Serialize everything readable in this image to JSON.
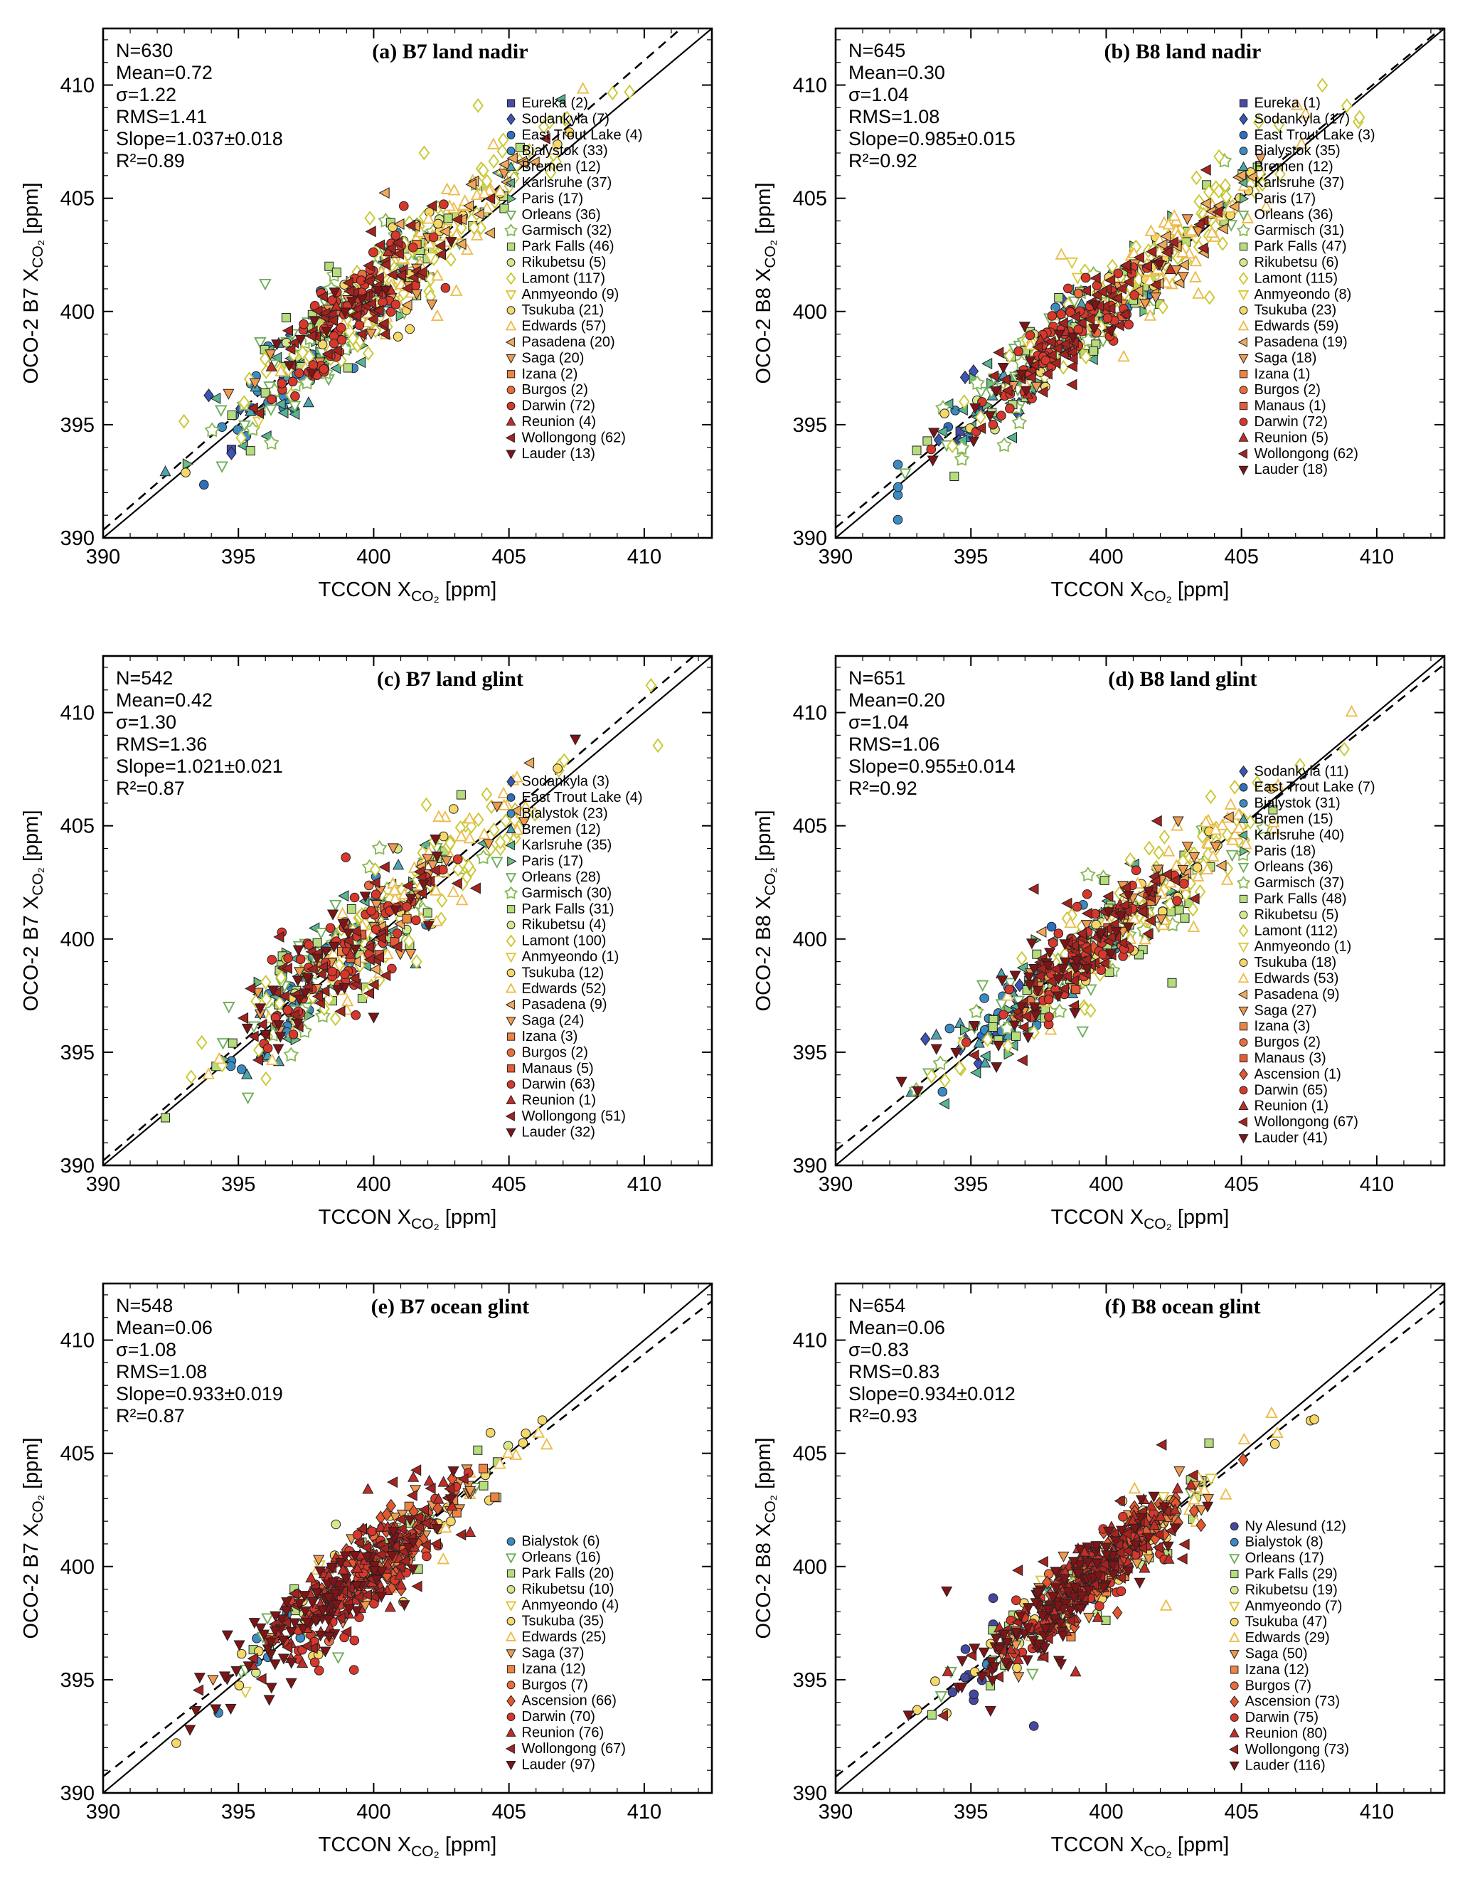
{
  "page": {
    "background": "#ffffff"
  },
  "chart_data": {
    "type": "scatter",
    "description": "Six-panel comparison of OCO-2 versus TCCON XCO2 retrievals (builds B7 and B8; land nadir, land glint, ocean glint), with one-to-one solid line and dashed regression line per panel.",
    "axes": {
      "min": 390,
      "max": 412.5,
      "major_ticks": [
        390,
        395,
        400,
        405,
        410
      ],
      "minor_step": 1,
      "xlabel": {
        "pre": "TCCON X",
        "sub": "CO₂",
        "unit": "[ppm]"
      },
      "unit": "ppm",
      "grid": false
    },
    "lines": {
      "identity": "solid black 1:1 line",
      "fit": "dashed black regression line"
    },
    "stations": [
      {
        "name": "Ny Alesund",
        "color": "#46489f",
        "marker": "circle",
        "open": false,
        "x_center": 395.6,
        "x_spread": 1.2
      },
      {
        "name": "Eureka",
        "color": "#4a4aa8",
        "marker": "square",
        "open": false,
        "x_center": 395.5,
        "x_spread": 1.5
      },
      {
        "name": "Sodankyla",
        "color": "#3a55b4",
        "marker": "diamond",
        "open": false,
        "x_center": 396.6,
        "x_spread": 1.8
      },
      {
        "name": "East Trout Lake",
        "color": "#2e6fbe",
        "marker": "circle",
        "open": false,
        "x_center": 397.5,
        "x_spread": 2.0
      },
      {
        "name": "Bialystok",
        "color": "#3b8bc2",
        "marker": "circle",
        "open": false,
        "x_center": 397.4,
        "x_spread": 2.2
      },
      {
        "name": "Bremen",
        "color": "#4da4b0",
        "marker": "triangle-up",
        "open": false,
        "x_center": 397.6,
        "x_spread": 2.0
      },
      {
        "name": "Karlsruhe",
        "color": "#57b394",
        "marker": "triangle-left",
        "open": false,
        "x_center": 398.5,
        "x_spread": 2.4
      },
      {
        "name": "Paris",
        "color": "#6fbf7f",
        "marker": "triangle-right",
        "open": false,
        "x_center": 398.6,
        "x_spread": 2.2
      },
      {
        "name": "Orleans",
        "color": "#6fae5c",
        "marker": "triangle-down",
        "open": true,
        "x_center": 398.5,
        "x_spread": 2.4
      },
      {
        "name": "Garmisch",
        "color": "#87b954",
        "marker": "star",
        "open": true,
        "x_center": 399.5,
        "x_spread": 2.6
      },
      {
        "name": "Park Falls",
        "color": "#b5dd7c",
        "marker": "square",
        "open": false,
        "x_center": 399.6,
        "x_spread": 2.8
      },
      {
        "name": "Rikubetsu",
        "color": "#d3e98c",
        "marker": "circle",
        "open": false,
        "x_center": 399.0,
        "x_spread": 2.4
      },
      {
        "name": "Lamont",
        "color": "#c9c832",
        "marker": "diamond",
        "open": true,
        "x_center": 401.0,
        "x_spread": 3.0
      },
      {
        "name": "Anmyeondo",
        "color": "#dcc83e",
        "marker": "triangle-down",
        "open": true,
        "x_center": 399.5,
        "x_spread": 2.0
      },
      {
        "name": "Tsukuba",
        "color": "#f5d868",
        "marker": "circle",
        "open": false,
        "x_center": 400.5,
        "x_spread": 2.8
      },
      {
        "name": "Edwards",
        "color": "#edbc4e",
        "marker": "triangle-up",
        "open": true,
        "x_center": 402.0,
        "x_spread": 2.6
      },
      {
        "name": "Pasadena",
        "color": "#f0a95a",
        "marker": "triangle-left",
        "open": false,
        "x_center": 402.4,
        "x_spread": 2.4
      },
      {
        "name": "Saga",
        "color": "#ef9a4e",
        "marker": "triangle-down",
        "open": false,
        "x_center": 400.0,
        "x_spread": 2.2
      },
      {
        "name": "Izana",
        "color": "#ee8441",
        "marker": "square",
        "open": false,
        "x_center": 400.5,
        "x_spread": 1.6
      },
      {
        "name": "Burgos",
        "color": "#ea6e3c",
        "marker": "circle",
        "open": false,
        "x_center": 399.0,
        "x_spread": 1.2
      },
      {
        "name": "Manaus",
        "color": "#e65a35",
        "marker": "square",
        "open": false,
        "x_center": 399.5,
        "x_spread": 1.0
      },
      {
        "name": "Ascension",
        "color": "#e4572f",
        "marker": "diamond",
        "open": false,
        "x_center": 400.5,
        "x_spread": 1.4
      },
      {
        "name": "Darwin",
        "color": "#d8382c",
        "marker": "circle",
        "open": false,
        "x_center": 399.0,
        "x_spread": 1.6
      },
      {
        "name": "Reunion",
        "color": "#c22d28",
        "marker": "triangle-up",
        "open": false,
        "x_center": 399.5,
        "x_spread": 1.6
      },
      {
        "name": "Wollongong",
        "color": "#a5231f",
        "marker": "triangle-left",
        "open": false,
        "x_center": 399.5,
        "x_spread": 2.0
      },
      {
        "name": "Lauder",
        "color": "#7e1416",
        "marker": "triangle-down",
        "open": false,
        "x_center": 398.2,
        "x_spread": 2.2
      }
    ],
    "panels": [
      {
        "id": "a",
        "title": "(a) B7  land nadir",
        "ylabel_pre": "OCO-2 B7 X",
        "stats_lines": [
          "N=630",
          "Mean=0.72",
          "σ=1.22",
          "RMS=1.41",
          "Slope=1.037±0.018",
          "R²=0.89"
        ],
        "fit": {
          "slope": 1.037,
          "mean": 0.72,
          "sigma": 1.22
        },
        "seed": 143,
        "legend_top_frac": 0.155,
        "legend_left_frac": 0.67,
        "legend": [
          {
            "station": "Eureka",
            "count": 2
          },
          {
            "station": "Sodankyla",
            "count": 7
          },
          {
            "station": "East Trout Lake",
            "count": 4
          },
          {
            "station": "Bialystok",
            "count": 33
          },
          {
            "station": "Bremen",
            "count": 12
          },
          {
            "station": "Karlsruhe",
            "count": 37
          },
          {
            "station": "Paris",
            "count": 17
          },
          {
            "station": "Orleans",
            "count": 36
          },
          {
            "station": "Garmisch",
            "count": 32
          },
          {
            "station": "Park Falls",
            "count": 46
          },
          {
            "station": "Rikubetsu",
            "count": 5
          },
          {
            "station": "Lamont",
            "count": 117
          },
          {
            "station": "Anmyeondo",
            "count": 9
          },
          {
            "station": "Tsukuba",
            "count": 21
          },
          {
            "station": "Edwards",
            "count": 57
          },
          {
            "station": "Pasadena",
            "count": 20
          },
          {
            "station": "Saga",
            "count": 20
          },
          {
            "station": "Izana",
            "count": 2
          },
          {
            "station": "Burgos",
            "count": 2
          },
          {
            "station": "Darwin",
            "count": 72
          },
          {
            "station": "Reunion",
            "count": 4
          },
          {
            "station": "Wollongong",
            "count": 62
          },
          {
            "station": "Lauder",
            "count": 13
          }
        ]
      },
      {
        "id": "b",
        "title": "(b) B8  land nadir",
        "ylabel_pre": "OCO-2 B8 X",
        "stats_lines": [
          "N=645",
          "Mean=0.30",
          "σ=1.04",
          "RMS=1.08",
          "Slope=0.985±0.015",
          "R²=0.92"
        ],
        "fit": {
          "slope": 0.985,
          "mean": 0.3,
          "sigma": 1.04
        },
        "seed": 244,
        "legend_top_frac": 0.155,
        "legend_left_frac": 0.67,
        "legend": [
          {
            "station": "Eureka",
            "count": 1
          },
          {
            "station": "Sodankyla",
            "count": 17
          },
          {
            "station": "East Trout Lake",
            "count": 3
          },
          {
            "station": "Bialystok",
            "count": 35
          },
          {
            "station": "Bremen",
            "count": 12
          },
          {
            "station": "Karlsruhe",
            "count": 37
          },
          {
            "station": "Paris",
            "count": 17
          },
          {
            "station": "Orleans",
            "count": 36
          },
          {
            "station": "Garmisch",
            "count": 31
          },
          {
            "station": "Park Falls",
            "count": 47
          },
          {
            "station": "Rikubetsu",
            "count": 6
          },
          {
            "station": "Lamont",
            "count": 115
          },
          {
            "station": "Anmyeondo",
            "count": 8
          },
          {
            "station": "Tsukuba",
            "count": 23
          },
          {
            "station": "Edwards",
            "count": 59
          },
          {
            "station": "Pasadena",
            "count": 19
          },
          {
            "station": "Saga",
            "count": 18
          },
          {
            "station": "Izana",
            "count": 1
          },
          {
            "station": "Burgos",
            "count": 2
          },
          {
            "station": "Manaus",
            "count": 1
          },
          {
            "station": "Darwin",
            "count": 72
          },
          {
            "station": "Reunion",
            "count": 5
          },
          {
            "station": "Wollongong",
            "count": 62
          },
          {
            "station": "Lauder",
            "count": 18
          }
        ]
      },
      {
        "id": "c",
        "title": "(c) B7  land glint",
        "ylabel_pre": "OCO-2 B7 X",
        "stats_lines": [
          "N=542",
          "Mean=0.42",
          "σ=1.30",
          "RMS=1.36",
          "Slope=1.021±0.021",
          "R²=0.87"
        ],
        "fit": {
          "slope": 1.021,
          "mean": 0.42,
          "sigma": 1.3
        },
        "seed": 345,
        "legend_top_frac": 0.255,
        "legend_left_frac": 0.67,
        "legend": [
          {
            "station": "Sodankyla",
            "count": 3
          },
          {
            "station": "East Trout Lake",
            "count": 4
          },
          {
            "station": "Bialystok",
            "count": 23
          },
          {
            "station": "Bremen",
            "count": 12
          },
          {
            "station": "Karlsruhe",
            "count": 35
          },
          {
            "station": "Paris",
            "count": 17
          },
          {
            "station": "Orleans",
            "count": 28
          },
          {
            "station": "Garmisch",
            "count": 30
          },
          {
            "station": "Park Falls",
            "count": 31
          },
          {
            "station": "Rikubetsu",
            "count": 4
          },
          {
            "station": "Lamont",
            "count": 100
          },
          {
            "station": "Anmyeondo",
            "count": 1
          },
          {
            "station": "Tsukuba",
            "count": 12
          },
          {
            "station": "Edwards",
            "count": 52
          },
          {
            "station": "Pasadena",
            "count": 9
          },
          {
            "station": "Saga",
            "count": 24
          },
          {
            "station": "Izana",
            "count": 3
          },
          {
            "station": "Burgos",
            "count": 2
          },
          {
            "station": "Manaus",
            "count": 5
          },
          {
            "station": "Darwin",
            "count": 63
          },
          {
            "station": "Reunion",
            "count": 1
          },
          {
            "station": "Wollongong",
            "count": 51
          },
          {
            "station": "Lauder",
            "count": 32
          }
        ]
      },
      {
        "id": "d",
        "title": "(d) B8  land glint",
        "ylabel_pre": "OCO-2 B8 X",
        "stats_lines": [
          "N=651",
          "Mean=0.20",
          "σ=1.04",
          "RMS=1.06",
          "Slope=0.955±0.014",
          "R²=0.92"
        ],
        "fit": {
          "slope": 0.955,
          "mean": 0.2,
          "sigma": 1.04
        },
        "seed": 446,
        "legend_top_frac": 0.235,
        "legend_left_frac": 0.67,
        "legend": [
          {
            "station": "Sodankyla",
            "count": 11
          },
          {
            "station": "East Trout Lake",
            "count": 7
          },
          {
            "station": "Bialystok",
            "count": 31
          },
          {
            "station": "Bremen",
            "count": 15
          },
          {
            "station": "Karlsruhe",
            "count": 40
          },
          {
            "station": "Paris",
            "count": 18
          },
          {
            "station": "Orleans",
            "count": 36
          },
          {
            "station": "Garmisch",
            "count": 37
          },
          {
            "station": "Park Falls",
            "count": 48
          },
          {
            "station": "Rikubetsu",
            "count": 5
          },
          {
            "station": "Lamont",
            "count": 112
          },
          {
            "station": "Anmyeondo",
            "count": 1
          },
          {
            "station": "Tsukuba",
            "count": 18
          },
          {
            "station": "Edwards",
            "count": 53
          },
          {
            "station": "Pasadena",
            "count": 9
          },
          {
            "station": "Saga",
            "count": 27
          },
          {
            "station": "Izana",
            "count": 3
          },
          {
            "station": "Burgos",
            "count": 2
          },
          {
            "station": "Manaus",
            "count": 3
          },
          {
            "station": "Ascension",
            "count": 1
          },
          {
            "station": "Darwin",
            "count": 65
          },
          {
            "station": "Reunion",
            "count": 1
          },
          {
            "station": "Wollongong",
            "count": 67
          },
          {
            "station": "Lauder",
            "count": 41
          }
        ]
      },
      {
        "id": "e",
        "title": "(e) B7  ocean glint",
        "ylabel_pre": "OCO-2 B7 X",
        "stats_lines": [
          "N=548",
          "Mean=0.06",
          "σ=1.08",
          "RMS=1.08",
          "Slope=0.933±0.019",
          "R²=0.87"
        ],
        "fit": {
          "slope": 0.933,
          "mean": 0.06,
          "sigma": 1.08
        },
        "seed": 547,
        "legend_top_frac": 0.515,
        "legend_left_frac": 0.67,
        "legend": [
          {
            "station": "Bialystok",
            "count": 6
          },
          {
            "station": "Orleans",
            "count": 16
          },
          {
            "station": "Park Falls",
            "count": 20
          },
          {
            "station": "Rikubetsu",
            "count": 10
          },
          {
            "station": "Anmyeondo",
            "count": 4
          },
          {
            "station": "Tsukuba",
            "count": 35
          },
          {
            "station": "Edwards",
            "count": 25
          },
          {
            "station": "Saga",
            "count": 37
          },
          {
            "station": "Izana",
            "count": 12
          },
          {
            "station": "Burgos",
            "count": 7
          },
          {
            "station": "Ascension",
            "count": 66
          },
          {
            "station": "Darwin",
            "count": 70
          },
          {
            "station": "Reunion",
            "count": 76
          },
          {
            "station": "Wollongong",
            "count": 67
          },
          {
            "station": "Lauder",
            "count": 97
          }
        ]
      },
      {
        "id": "f",
        "title": "(f) B8  ocean glint",
        "ylabel_pre": "OCO-2 B8 X",
        "stats_lines": [
          "N=654",
          "Mean=0.06",
          "σ=0.83",
          "RMS=0.83",
          "Slope=0.934±0.012",
          "R²=0.93"
        ],
        "fit": {
          "slope": 0.934,
          "mean": 0.06,
          "sigma": 0.83
        },
        "seed": 648,
        "legend_top_frac": 0.485,
        "legend_left_frac": 0.655,
        "legend": [
          {
            "station": "Ny Alesund",
            "count": 12
          },
          {
            "station": "Bialystok",
            "count": 8
          },
          {
            "station": "Orleans",
            "count": 17
          },
          {
            "station": "Park Falls",
            "count": 29
          },
          {
            "station": "Rikubetsu",
            "count": 19
          },
          {
            "station": "Anmyeondo",
            "count": 7
          },
          {
            "station": "Tsukuba",
            "count": 47
          },
          {
            "station": "Edwards",
            "count": 29
          },
          {
            "station": "Saga",
            "count": 50
          },
          {
            "station": "Izana",
            "count": 12
          },
          {
            "station": "Burgos",
            "count": 7
          },
          {
            "station": "Ascension",
            "count": 73
          },
          {
            "station": "Darwin",
            "count": 75
          },
          {
            "station": "Reunion",
            "count": 80
          },
          {
            "station": "Wollongong",
            "count": 73
          },
          {
            "station": "Lauder",
            "count": 116
          }
        ]
      }
    ]
  }
}
